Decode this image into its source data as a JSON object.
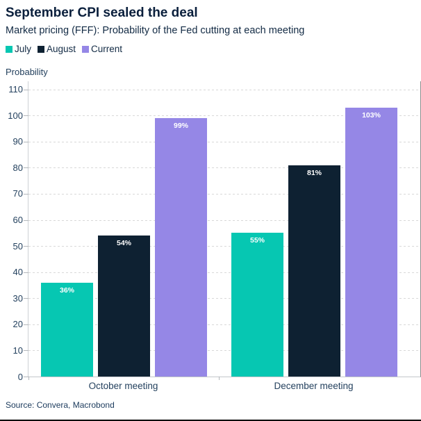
{
  "header": {
    "title": "September CPI sealed the deal",
    "subtitle": "Market pricing (FFF): Probability of the Fed cutting at each meeting"
  },
  "legend": {
    "items": [
      {
        "label": "July",
        "color": "#06C7B2"
      },
      {
        "label": "August",
        "color": "#0E2132"
      },
      {
        "label": "Current",
        "color": "#9587E6"
      }
    ]
  },
  "axis": {
    "y_title": "Probability"
  },
  "source": "Source: Convera, Macrobond",
  "chart_data": {
    "type": "bar",
    "title": "September CPI sealed the deal",
    "subtitle": "Market pricing (FFF): Probability of the Fed cutting at each meeting",
    "categories": [
      "October meeting",
      "December meeting"
    ],
    "series": [
      {
        "name": "July",
        "color": "#06C7B2",
        "values": [
          36,
          55
        ],
        "labels": [
          "36%",
          "55%"
        ]
      },
      {
        "name": "August",
        "color": "#0E2132",
        "values": [
          54,
          81
        ],
        "labels": [
          "54%",
          "81%"
        ]
      },
      {
        "name": "Current",
        "color": "#9587E6",
        "values": [
          99,
          103
        ],
        "labels": [
          "99%",
          "103%"
        ]
      }
    ],
    "ylabel": "Probability",
    "yticks": [
      0,
      10,
      20,
      30,
      40,
      50,
      60,
      70,
      80,
      90,
      100,
      110
    ],
    "ylim": [
      0,
      113
    ],
    "grid": "dashed-horizontal",
    "legend_position": "top-left",
    "data_label_position": "inside-top",
    "data_label_color": "#ffffff"
  }
}
